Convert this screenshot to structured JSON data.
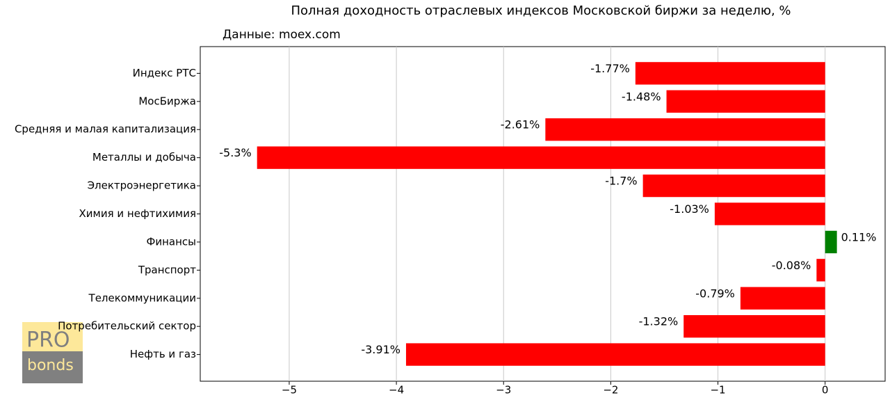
{
  "chart_data": {
    "type": "barh",
    "title": "Полная доходность отраслевых индексов Московской биржи за неделю, %",
    "subtitle": "Данные: moex.com",
    "categories": [
      "Индекс РТС",
      "МосБиржа",
      "Средняя и малая капитализация",
      "Металлы и добыча",
      "Электроэнергетика",
      "Химия и нефтихимия",
      "Финансы",
      "Транспорт",
      "Телекоммуникации",
      "Потребительский сектор",
      "Нефть и газ"
    ],
    "values": [
      -1.77,
      -1.48,
      -2.61,
      -5.3,
      -1.7,
      -1.03,
      0.11,
      -0.08,
      -0.79,
      -1.32,
      -3.91
    ],
    "value_labels": [
      "-1.77%",
      "-1.48%",
      "-2.61%",
      "-5.3%",
      "-1.7%",
      "-1.03%",
      "0.11%",
      "-0.08%",
      "-0.79%",
      "-1.32%",
      "-3.91%"
    ],
    "colors": [
      "#ff0000",
      "#ff0000",
      "#ff0000",
      "#ff0000",
      "#ff0000",
      "#ff0000",
      "#008000",
      "#ff0000",
      "#ff0000",
      "#ff0000",
      "#ff0000"
    ],
    "xlim": [
      -5.83,
      0.56
    ],
    "xticks": [
      {
        "value": -5,
        "label": "−5"
      },
      {
        "value": -4,
        "label": "−4"
      },
      {
        "value": -3,
        "label": "−3"
      },
      {
        "value": -2,
        "label": "−2"
      },
      {
        "value": -1,
        "label": "−1"
      },
      0
    ],
    "grid": true
  },
  "logo": {
    "top": "PRO",
    "bottom": "bonds"
  }
}
